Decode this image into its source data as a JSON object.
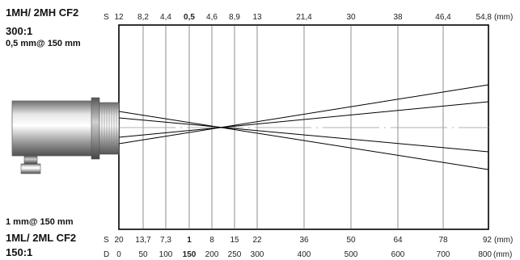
{
  "labels": {
    "top_model": "1MH/ 2MH CF2",
    "top_ratio": "300:1",
    "top_spot": "0,5 mm@ 150 mm",
    "bottom_spot": "1 mm@ 150 mm",
    "bottom_model": "1ML/ 2ML CF2",
    "bottom_ratio": "150:1"
  },
  "scales": {
    "top_s": {
      "prefix": "S",
      "unit": "(mm)",
      "ticks": [
        "12",
        "8,2",
        "4,4",
        "0,5",
        "4,6",
        "8,9",
        "13",
        "21,4",
        "30",
        "38",
        "46,4",
        "54,8"
      ],
      "bold_index": 3
    },
    "bottom_s": {
      "prefix": "S",
      "unit": "(mm)",
      "ticks": [
        "20",
        "13,7",
        "7,3",
        "1",
        "8",
        "15",
        "22",
        "36",
        "50",
        "64",
        "78",
        "92"
      ],
      "bold_index": 3
    },
    "bottom_d": {
      "prefix": "D",
      "unit": "(mm)",
      "ticks": [
        "0",
        "50",
        "100",
        "150",
        "200",
        "250",
        "300",
        "400",
        "500",
        "600",
        "700",
        "800"
      ],
      "bold_index": 3
    }
  },
  "colors": {
    "frame": "#000000",
    "grid": "#444444",
    "sensor_body": "#b8b8b8"
  }
}
